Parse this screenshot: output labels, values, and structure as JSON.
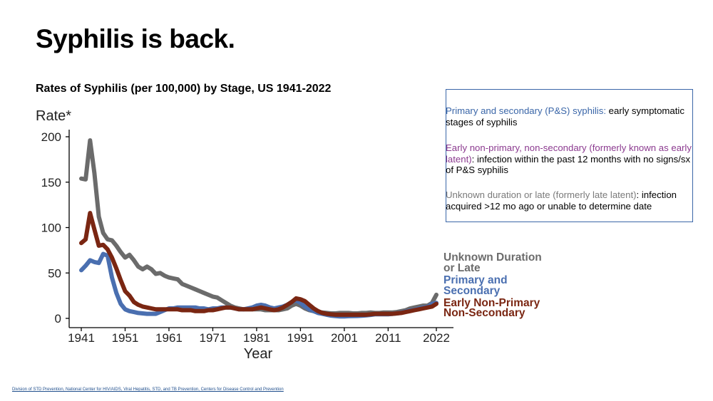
{
  "slide": {
    "title": "Syphilis is back.",
    "chart_title": "Rates of Syphilis (per 100,000) by Stage, US 1941-2022"
  },
  "definitions": [
    {
      "term": "Primary and secondary (P&S) syphilis:",
      "text": " early symptomatic stages of syphilis",
      "color": "#3a66a8"
    },
    {
      "term": "Early non-primary, non-secondary (formerly known as early latent)",
      "text": ": infection within the past 12 months with no signs/sx of P&S syphilis",
      "color": "#8b3a8f"
    },
    {
      "term": "Unknown duration or late (formerly late latent)",
      "text": ": infection acquired >12 mo ago or unable to determine date",
      "color": "#7a7a7a"
    }
  ],
  "footer": {
    "link1": "Division of STD Prevention",
    "sep1": ", ",
    "link2": "National Center for HIV/AIDS, Viral Hepatitis, STD, and TB Prevention",
    "sep2": ", ",
    "link3": "Centers for Disease Control and Prevention"
  },
  "chart_data": {
    "type": "line",
    "title": "Rates of Syphilis (per 100,000) by Stage, US 1941-2022",
    "xlabel": "Year",
    "ylabel": "Rate*",
    "xlim": [
      1941,
      2022
    ],
    "ylim": [
      0,
      200
    ],
    "x_ticks": [
      1941,
      1951,
      1961,
      1971,
      1981,
      1991,
      2001,
      2011,
      2022
    ],
    "y_ticks": [
      0,
      50,
      100,
      150,
      200
    ],
    "grid": false,
    "legend_position": "right",
    "series": [
      {
        "name": "Unknown Duration or Late",
        "legend_lines": [
          "Unknown Duration",
          "or Late"
        ],
        "color": "#6b6b6b",
        "x": [
          1941,
          1942,
          1943,
          1944,
          1945,
          1946,
          1947,
          1948,
          1949,
          1950,
          1951,
          1952,
          1953,
          1954,
          1955,
          1956,
          1957,
          1958,
          1959,
          1960,
          1961,
          1962,
          1963,
          1964,
          1965,
          1966,
          1967,
          1968,
          1969,
          1970,
          1971,
          1972,
          1973,
          1974,
          1975,
          1976,
          1977,
          1978,
          1979,
          1980,
          1981,
          1982,
          1983,
          1984,
          1985,
          1986,
          1987,
          1988,
          1989,
          1990,
          1991,
          1992,
          1993,
          1994,
          1995,
          1996,
          1997,
          1998,
          1999,
          2000,
          2001,
          2002,
          2003,
          2004,
          2005,
          2006,
          2007,
          2008,
          2009,
          2010,
          2011,
          2012,
          2013,
          2014,
          2015,
          2016,
          2017,
          2018,
          2019,
          2020,
          2021,
          2022
        ],
        "y": [
          154,
          153,
          196,
          160,
          112,
          94,
          87,
          86,
          80,
          73,
          67,
          70,
          64,
          57,
          54,
          57,
          54,
          49,
          50,
          47,
          45,
          44,
          43,
          38,
          36,
          34,
          32,
          30,
          28,
          26,
          24,
          23,
          20,
          17,
          14,
          12,
          11,
          10,
          10,
          10,
          10,
          10,
          9,
          9,
          9,
          9,
          10,
          11,
          14,
          16,
          14,
          11,
          9,
          8,
          7,
          6.5,
          6,
          5.5,
          5.5,
          6,
          6,
          6,
          5.5,
          5.5,
          6,
          6,
          6.5,
          6,
          6,
          6.5,
          6.5,
          6.5,
          7,
          8,
          9,
          11,
          12,
          13,
          14,
          14,
          17,
          26
        ]
      },
      {
        "name": "Primary and Secondary",
        "legend_lines": [
          "Primary and",
          "Secondary"
        ],
        "color": "#4a6fb0",
        "x": [
          1941,
          1942,
          1943,
          1944,
          1945,
          1946,
          1947,
          1948,
          1949,
          1950,
          1951,
          1952,
          1953,
          1954,
          1955,
          1956,
          1957,
          1958,
          1959,
          1960,
          1961,
          1962,
          1963,
          1964,
          1965,
          1966,
          1967,
          1968,
          1969,
          1970,
          1971,
          1972,
          1973,
          1974,
          1975,
          1976,
          1977,
          1978,
          1979,
          1980,
          1981,
          1982,
          1983,
          1984,
          1985,
          1986,
          1987,
          1988,
          1989,
          1990,
          1991,
          1992,
          1993,
          1994,
          1995,
          1996,
          1997,
          1998,
          1999,
          2000,
          2001,
          2002,
          2003,
          2004,
          2005,
          2006,
          2007,
          2008,
          2009,
          2010,
          2011,
          2012,
          2013,
          2014,
          2015,
          2016,
          2017,
          2018,
          2019,
          2020,
          2021,
          2022
        ],
        "y": [
          53,
          58,
          64,
          62,
          61,
          71,
          69,
          45,
          28,
          16,
          10,
          8,
          7,
          6,
          5.5,
          5,
          5,
          5,
          7,
          9,
          11,
          11,
          12,
          12,
          12,
          12,
          12,
          11,
          11,
          10,
          11,
          11,
          12,
          12,
          12,
          11,
          10,
          10,
          11,
          12,
          14,
          15,
          14,
          12,
          11,
          12,
          13,
          15,
          18,
          20,
          17,
          13,
          10,
          8,
          6,
          5,
          4,
          3,
          2.5,
          2.2,
          2.1,
          2.4,
          2.5,
          2.7,
          2.9,
          3.3,
          3.8,
          4.5,
          4.6,
          4.5,
          4.5,
          5,
          5.5,
          6.3,
          7.5,
          8.7,
          9.5,
          10.8,
          11.9,
          12.7,
          16,
          17
        ]
      },
      {
        "name": "Early Non-Primary Non-Secondary",
        "legend_lines": [
          "Early Non-Primary",
          "Non-Secondary"
        ],
        "color": "#7a2612",
        "x": [
          1941,
          1942,
          1943,
          1944,
          1945,
          1946,
          1947,
          1948,
          1949,
          1950,
          1951,
          1952,
          1953,
          1954,
          1955,
          1956,
          1957,
          1958,
          1959,
          1960,
          1961,
          1962,
          1963,
          1964,
          1965,
          1966,
          1967,
          1968,
          1969,
          1970,
          1971,
          1972,
          1973,
          1974,
          1975,
          1976,
          1977,
          1978,
          1979,
          1980,
          1981,
          1982,
          1983,
          1984,
          1985,
          1986,
          1987,
          1988,
          1989,
          1990,
          1991,
          1992,
          1993,
          1994,
          1995,
          1996,
          1997,
          1998,
          1999,
          2000,
          2001,
          2002,
          2003,
          2004,
          2005,
          2006,
          2007,
          2008,
          2009,
          2010,
          2011,
          2012,
          2013,
          2014,
          2015,
          2016,
          2017,
          2018,
          2019,
          2020,
          2021,
          2022
        ],
        "y": [
          83,
          87,
          116,
          98,
          80,
          81,
          76,
          67,
          55,
          42,
          30,
          25,
          18,
          15,
          13,
          12,
          11,
          10,
          10,
          10,
          10,
          10,
          10,
          9,
          9,
          9,
          8,
          8,
          8,
          9,
          9,
          10,
          11,
          12,
          12,
          11,
          10,
          10,
          10,
          10,
          11,
          12,
          11,
          10,
          9,
          10,
          12,
          15,
          18,
          22,
          21,
          19,
          15,
          11,
          8,
          6,
          5,
          4.5,
          4,
          4,
          4,
          4,
          4,
          4,
          4,
          4,
          4.5,
          5,
          5,
          5,
          5,
          5,
          5.5,
          6,
          7,
          8,
          9,
          10,
          11,
          12,
          13,
          16
        ]
      }
    ]
  }
}
